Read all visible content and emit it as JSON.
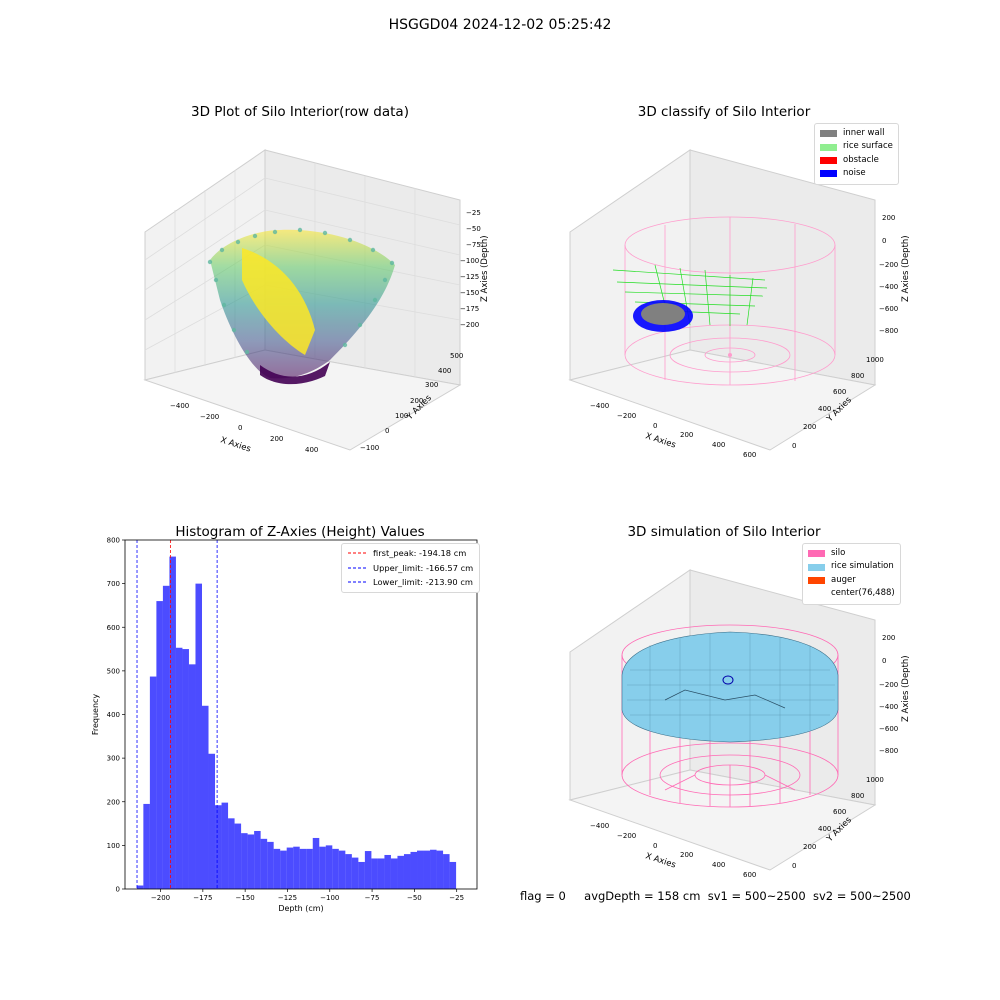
{
  "suptitle": "HSGGD04 2024-12-02 05:25:42",
  "status": {
    "flag": "flag = 0",
    "avgdepth": "avgDepth = 158 cm",
    "sv1": "sv1 = 500~2500",
    "sv2": "sv2 = 500~2500"
  },
  "colors": {
    "inner_wall": "#808080",
    "rice_surface": "#90ee90",
    "obstacle": "#ff0000",
    "noise": "#0000ff",
    "silo": "#ff69b4",
    "rice_simulation": "#87ceeb",
    "auger": "#ff4500",
    "histogram": "#0000ff"
  },
  "panels": [
    {
      "title": "3D Plot of Silo Interior(row data)",
      "type": "3d-scatter",
      "x_label": "X Axies",
      "y_label": "Y Axies",
      "z_label": "Z Axies (Depth)",
      "x_ticks": [
        "−400",
        "−200",
        "0",
        "200",
        "400"
      ],
      "y_ticks": [
        "−100",
        "0",
        "100",
        "200",
        "300",
        "400",
        "500"
      ],
      "z_ticks": [
        "−25",
        "−50",
        "−75",
        "−100",
        "−125",
        "−150",
        "−175",
        "−200"
      ],
      "colormap": "viridis"
    },
    {
      "title": "3D classify of Silo Interior",
      "type": "3d-classification",
      "x_label": "X Axies",
      "y_label": "Y Axies",
      "z_label": "Z Axies (Depth)",
      "x_ticks": [
        "−400",
        "−200",
        "0",
        "200",
        "400",
        "600"
      ],
      "y_ticks": [
        "0",
        "200",
        "400",
        "600",
        "800",
        "1000"
      ],
      "z_ticks": [
        "200",
        "0",
        "−200",
        "−400",
        "−600",
        "−800"
      ],
      "legend": [
        "inner wall",
        "rice surface",
        "obstacle",
        "noise"
      ]
    },
    {
      "title": "Histogram of Z-Axies (Height) Values",
      "type": "histogram",
      "x_label": "Depth (cm)",
      "y_label": "Frequency",
      "legend": [
        "first_peak: -194.18 cm",
        "Upper_limit: -166.57 cm",
        "Lower_limit: -213.90 cm"
      ]
    },
    {
      "title": "3D simulation of Silo Interior",
      "type": "3d-simulation",
      "x_label": "X Axies",
      "y_label": "Y Axies",
      "z_label": "Z Axies (Depth)",
      "x_ticks": [
        "−400",
        "−200",
        "0",
        "200",
        "400",
        "600"
      ],
      "y_ticks": [
        "0",
        "200",
        "400",
        "600",
        "800",
        "1000"
      ],
      "z_ticks": [
        "200",
        "0",
        "−200",
        "−400",
        "−600",
        "−800"
      ],
      "legend": [
        "silo",
        "rice simulation",
        "auger",
        "center(76,488)"
      ]
    }
  ],
  "chart_data": {
    "type": "bar",
    "title": "Histogram of Z-Axies (Height) Values",
    "xlabel": "Depth (cm)",
    "ylabel": "Frequency",
    "xlim": [
      -221,
      -13
    ],
    "ylim": [
      0,
      800
    ],
    "x_ticks": [
      -200,
      -175,
      -150,
      -125,
      -100,
      -75,
      -50,
      -25
    ],
    "x_tick_labels": [
      "−200",
      "−175",
      "−150",
      "−125",
      "−100",
      "−75",
      "−50",
      "−25"
    ],
    "y_ticks": [
      0,
      100,
      200,
      300,
      400,
      500,
      600,
      700,
      800
    ],
    "bin_start": -214.0,
    "bin_width": 3.85,
    "values": [
      8,
      195,
      487,
      660,
      695,
      762,
      553,
      550,
      515,
      700,
      420,
      310,
      192,
      198,
      162,
      150,
      128,
      125,
      133,
      115,
      108,
      92,
      88,
      95,
      97,
      92,
      92,
      117,
      97,
      100,
      92,
      88,
      80,
      72,
      62,
      87,
      70,
      70,
      78,
      70,
      76,
      80,
      85,
      88,
      88,
      90,
      88,
      80,
      62
    ],
    "vlines": [
      {
        "name": "first_peak: -194.18 cm",
        "x": -194.18,
        "color": "#ff0000"
      },
      {
        "name": "Upper_limit: -166.57 cm",
        "x": -166.57,
        "color": "#0000ff"
      },
      {
        "name": "Lower_limit: -213.90 cm",
        "x": -213.9,
        "color": "#0000ff"
      }
    ]
  }
}
